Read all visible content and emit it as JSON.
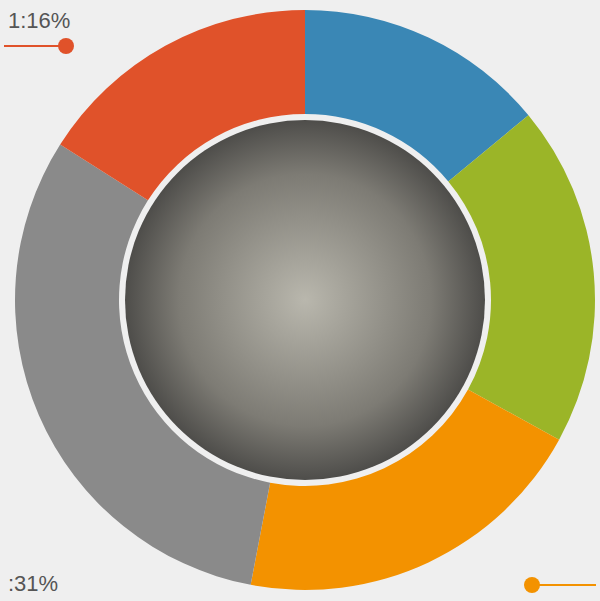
{
  "chart_data": {
    "type": "donut",
    "values": [
      14,
      19,
      20,
      31,
      16
    ],
    "value_labels": [
      null,
      null,
      null,
      ":31%",
      "1:16%"
    ],
    "colors": [
      "#3a87b5",
      "#9bb528",
      "#f39200",
      "#8a8a8a",
      "#e0522a"
    ]
  }
}
